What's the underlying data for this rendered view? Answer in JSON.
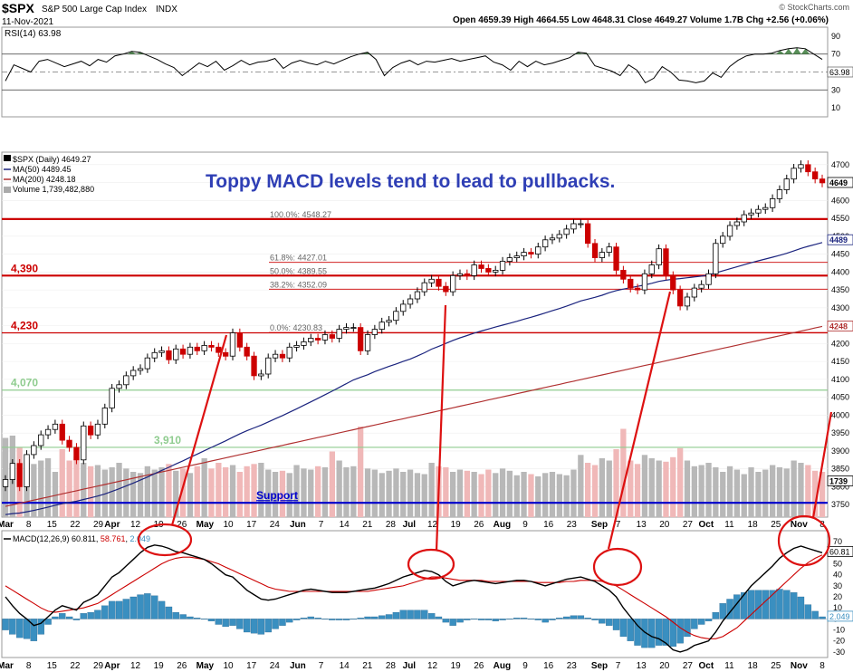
{
  "header": {
    "symbol": "$SPX",
    "name": "S&P 500 Large Cap Index",
    "exchange": "INDX",
    "date": "11-Nov-2021",
    "ohlc": "Open 4659.39  High 4664.55  Low 4648.31  Close 4649.27  Volume 1.7B  Chg +2.56 (+0.06%)",
    "watermark": "© StockCharts.com"
  },
  "rsi": {
    "label": "RSI(14) 63.98",
    "last_value_label": "63.98",
    "ticks": [
      {
        "label": "90",
        "v": 90
      },
      {
        "label": "70",
        "v": 70
      },
      {
        "label": "50",
        "v": 50
      },
      {
        "label": "30",
        "v": 30
      },
      {
        "label": "10",
        "v": 10
      }
    ],
    "values": [
      40,
      58,
      54,
      50,
      62,
      64,
      60,
      56,
      59,
      62,
      57,
      64,
      61,
      68,
      70,
      73,
      72,
      68,
      64,
      59,
      55,
      46,
      53,
      60,
      56,
      62,
      52,
      57,
      63,
      58,
      61,
      62,
      65,
      54,
      60,
      63,
      60,
      58,
      62,
      59,
      63,
      67,
      70,
      72,
      64,
      46,
      55,
      60,
      63,
      58,
      62,
      61,
      63,
      65,
      62,
      64,
      66,
      68,
      61,
      58,
      52,
      62,
      56,
      62,
      58,
      60,
      63,
      66,
      72,
      71,
      57,
      54,
      51,
      46,
      58,
      52,
      38,
      43,
      56,
      50,
      41,
      40,
      38,
      40,
      49,
      44,
      56,
      63,
      68,
      70,
      70,
      71,
      74,
      76,
      77,
      76,
      70,
      64
    ]
  },
  "price": {
    "legend": {
      "daily": "$SPX (Daily) 4649.27",
      "ma50": "MA(50) 4489.45",
      "ma200": "MA(200) 4248.18",
      "volume": "Volume 1,739,482,880"
    },
    "annotation": "Toppy MACD levels tend to lead to pullbacks.",
    "axis_ticks": [
      "4700",
      "4650",
      "4600",
      "4550",
      "4500",
      "4450",
      "4400",
      "4350",
      "4300",
      "4250",
      "4200",
      "4150",
      "4100",
      "4050",
      "4000",
      "3950",
      "3900",
      "3850",
      "3800",
      "3750"
    ],
    "last_labels": {
      "close": "4649",
      "ma50": "4489",
      "ma200": "4248",
      "volume": "1739"
    },
    "levels": [
      {
        "label": "",
        "value": 4548,
        "color": "#cc0000"
      },
      {
        "label": "4,390",
        "value": 4390,
        "color": "#cc0000"
      },
      {
        "label": "4,230",
        "value": 4230,
        "color": "#cc0000"
      },
      {
        "label": "4,070",
        "value": 4070,
        "color": "#8fcc8f"
      },
      {
        "label": "3,910",
        "value": 3910,
        "color": "#8fcc8f"
      },
      {
        "label": "Support",
        "value": 3755,
        "color": "#0000cc"
      }
    ],
    "fib": [
      {
        "label": "100.0%: 4548.27",
        "value": 4548.27
      },
      {
        "label": "61.8%: 4427.01",
        "value": 4427.01
      },
      {
        "label": "50.0%: 4389.55",
        "value": 4389.55
      },
      {
        "label": "38.2%: 4352.09",
        "value": 4352.09
      },
      {
        "label": "0.0%: 4230.83",
        "value": 4230.83
      }
    ],
    "closes": [
      3820,
      3865,
      3800,
      3890,
      3915,
      3945,
      3960,
      3975,
      3930,
      3910,
      3875,
      3970,
      3945,
      3975,
      4020,
      4075,
      4085,
      4110,
      4125,
      4130,
      4160,
      4175,
      4180,
      4155,
      4185,
      4170,
      4190,
      4180,
      4195,
      4190,
      4175,
      4165,
      4230,
      4190,
      4165,
      4110,
      4115,
      4160,
      4170,
      4160,
      4190,
      4195,
      4205,
      4215,
      4210,
      4225,
      4215,
      4240,
      4245,
      4245,
      4180,
      4225,
      4240,
      4260,
      4265,
      4290,
      4310,
      4325,
      4345,
      4370,
      4380,
      4360,
      4345,
      4390,
      4395,
      4390,
      4420,
      4410,
      4400,
      4405,
      4430,
      4440,
      4445,
      4455,
      4450,
      4470,
      4490,
      4495,
      4505,
      4520,
      4535,
      4535,
      4480,
      4440,
      4455,
      4470,
      4405,
      4380,
      4355,
      4350,
      4395,
      4420,
      4465,
      4390,
      4350,
      4305,
      4330,
      4355,
      4365,
      4395,
      4480,
      4500,
      4530,
      4540,
      4560,
      4565,
      4575,
      4580,
      4605,
      4630,
      4660,
      4690,
      4700,
      4680,
      4660,
      4649
    ]
  },
  "volume": {
    "values": [
      70,
      72,
      62,
      48,
      47,
      50,
      52,
      40,
      60,
      50,
      54,
      48,
      45,
      46,
      42,
      44,
      48,
      43,
      40,
      39,
      45,
      42,
      44,
      47,
      41,
      43,
      39,
      45,
      52,
      43,
      48,
      44,
      46,
      40,
      45,
      47,
      48,
      42,
      40,
      41,
      39,
      46,
      43,
      42,
      45,
      44,
      58,
      50,
      44,
      45,
      80,
      43,
      42,
      39,
      41,
      43,
      40,
      42,
      39,
      38,
      48,
      45,
      44,
      40,
      42,
      41,
      40,
      38,
      42,
      39,
      43,
      41,
      37,
      40,
      38,
      36,
      39,
      40,
      38,
      37,
      42,
      55,
      48,
      46,
      52,
      50,
      60,
      78,
      50,
      47,
      55,
      52,
      50,
      49,
      53,
      61,
      50,
      45,
      46,
      48,
      44,
      40,
      45,
      42,
      38,
      44,
      40,
      42,
      46,
      44,
      43,
      50,
      48,
      46,
      41,
      40
    ]
  },
  "macd": {
    "label": "MACD(12,26,9) 60.811, 58.761, 2.049",
    "label_parts": {
      "title": "MACD(12,26,9)",
      "macd": "60.811",
      "signal": "58.761",
      "hist": "2.049"
    },
    "ticks": [
      {
        "label": "70",
        "v": 70
      },
      {
        "label": "60",
        "v": 60
      },
      {
        "label": "50",
        "v": 50
      },
      {
        "label": "40",
        "v": 40
      },
      {
        "label": "30",
        "v": 30
      },
      {
        "label": "20",
        "v": 20
      },
      {
        "label": "10",
        "v": 10
      },
      {
        "label": "0",
        "v": 0
      },
      {
        "label": "-10",
        "v": -10
      },
      {
        "label": "-20",
        "v": -20
      },
      {
        "label": "-30",
        "v": -30
      }
    ],
    "last_labels": {
      "macd": "60.81",
      "hist": "2.049"
    },
    "macd_line": [
      20,
      12,
      5,
      0,
      -6,
      -4,
      2,
      8,
      12,
      10,
      8,
      15,
      18,
      22,
      30,
      38,
      42,
      48,
      54,
      60,
      65,
      67,
      66,
      64,
      61,
      60,
      58,
      56,
      54,
      50,
      45,
      40,
      38,
      32,
      26,
      22,
      18,
      17,
      18,
      20,
      22,
      24,
      26,
      27,
      26,
      25,
      24,
      24,
      24,
      25,
      26,
      27,
      28,
      30,
      32,
      35,
      38,
      40,
      42,
      44,
      43,
      40,
      34,
      30,
      32,
      34,
      35,
      34,
      33,
      32,
      33,
      34,
      35,
      35,
      34,
      32,
      30,
      32,
      34,
      36,
      37,
      38,
      36,
      34,
      30,
      26,
      20,
      10,
      2,
      -6,
      -12,
      -16,
      -18,
      -22,
      -28,
      -30,
      -28,
      -24,
      -22,
      -20,
      -12,
      -2,
      6,
      14,
      22,
      30,
      36,
      42,
      48,
      55,
      60,
      64,
      66,
      64,
      62,
      60
    ],
    "signal_line": [
      30,
      26,
      22,
      18,
      14,
      10,
      7,
      6,
      7,
      8,
      9,
      10,
      12,
      14,
      18,
      22,
      26,
      30,
      34,
      38,
      42,
      46,
      50,
      53,
      55,
      56,
      56,
      55,
      54,
      52,
      50,
      47,
      44,
      41,
      38,
      35,
      32,
      29,
      27,
      26,
      25,
      25,
      25,
      25,
      25,
      25,
      25,
      25,
      25,
      25,
      25,
      25,
      26,
      27,
      28,
      29,
      30,
      32,
      34,
      36,
      38,
      38,
      37,
      36,
      35,
      35,
      35,
      35,
      34,
      34,
      34,
      34,
      34,
      34,
      34,
      33,
      33,
      33,
      33,
      34,
      34,
      35,
      35,
      35,
      34,
      32,
      30,
      26,
      22,
      18,
      14,
      10,
      6,
      2,
      -3,
      -8,
      -12,
      -15,
      -17,
      -18,
      -18,
      -16,
      -12,
      -8,
      -2,
      4,
      10,
      16,
      22,
      28,
      34,
      40,
      46,
      51,
      55,
      58
    ],
    "hist": [
      -10,
      -14,
      -17,
      -18,
      -20,
      -14,
      -5,
      2,
      5,
      2,
      -1,
      5,
      6,
      8,
      12,
      16,
      16,
      18,
      20,
      22,
      23,
      21,
      16,
      11,
      6,
      4,
      2,
      1,
      0,
      -2,
      -5,
      -7,
      -6,
      -9,
      -12,
      -13,
      -14,
      -12,
      -9,
      -6,
      -3,
      -1,
      1,
      2,
      1,
      0,
      -1,
      -1,
      -1,
      0,
      1,
      2,
      2,
      3,
      4,
      6,
      8,
      8,
      8,
      8,
      5,
      2,
      -3,
      -6,
      -3,
      -1,
      0,
      -1,
      -1,
      -2,
      -1,
      0,
      1,
      1,
      0,
      -1,
      -3,
      -1,
      1,
      2,
      3,
      3,
      1,
      -1,
      -4,
      -6,
      -10,
      -16,
      -20,
      -24,
      -26,
      -26,
      -24,
      -24,
      -25,
      -22,
      -16,
      -9,
      -5,
      -2,
      6,
      14,
      18,
      22,
      24,
      26,
      26,
      26,
      26,
      27,
      26,
      24,
      20,
      13,
      7,
      2
    ]
  },
  "x_axis": {
    "labels": [
      "Mar",
      "8",
      "15",
      "22",
      "29",
      "Apr",
      "12",
      "19",
      "26",
      "May",
      "10",
      "17",
      "24",
      "Jun",
      "7",
      "14",
      "21",
      "28",
      "Jul",
      "12",
      "19",
      "26",
      "Aug",
      "9",
      "16",
      "23",
      "Sep",
      "7",
      "13",
      "20",
      "27",
      "Oct",
      "11",
      "18",
      "25",
      "Nov",
      "8"
    ],
    "label_index": [
      0,
      5,
      10,
      15,
      20,
      23,
      28,
      33,
      38,
      43,
      48,
      53,
      58,
      63,
      68,
      73,
      78,
      83,
      87,
      92,
      97,
      102,
      107,
      112,
      117,
      122,
      128,
      132,
      137,
      142,
      147,
      151,
      156,
      161,
      166,
      171,
      176
    ]
  },
  "colors": {
    "up": "#000000",
    "down": "#cc0000",
    "ma50": "#1a237e",
    "ma200": "#b03030",
    "macd": "#000000",
    "signal": "#cc0000",
    "hist": "#3a8fc0",
    "annotation": "#2f3fb5",
    "circle": "#dd1111"
  }
}
